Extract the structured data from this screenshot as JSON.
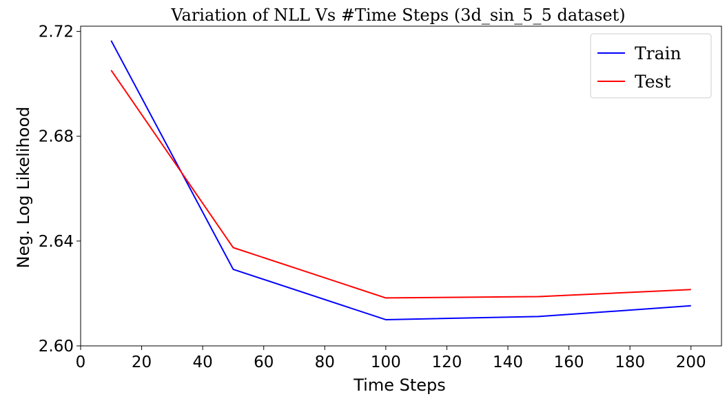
{
  "chart_data": {
    "type": "line",
    "title": "Variation of NLL Vs #Time Steps (3d_sin_5_5 dataset)",
    "xlabel": "Time Steps",
    "ylabel": "Neg. Log Likelihood",
    "xlim": [
      0,
      210
    ],
    "ylim": [
      2.6,
      2.722
    ],
    "xticks": [
      0,
      20,
      40,
      60,
      80,
      100,
      120,
      140,
      160,
      180,
      200
    ],
    "yticks": [
      2.6,
      2.64,
      2.68,
      2.72
    ],
    "ytick_labels": [
      "2.60",
      "2.64",
      "2.68",
      "2.72"
    ],
    "grid": false,
    "legend_position": "top-right",
    "x": [
      10,
      50,
      100,
      150,
      200
    ],
    "series": [
      {
        "name": "Train",
        "color": "#0000ff",
        "values": [
          2.7165,
          2.6292,
          2.61,
          2.6112,
          2.6153
        ]
      },
      {
        "name": "Test",
        "color": "#ff0000",
        "values": [
          2.7052,
          2.6375,
          2.6183,
          2.6188,
          2.6215
        ]
      }
    ]
  }
}
